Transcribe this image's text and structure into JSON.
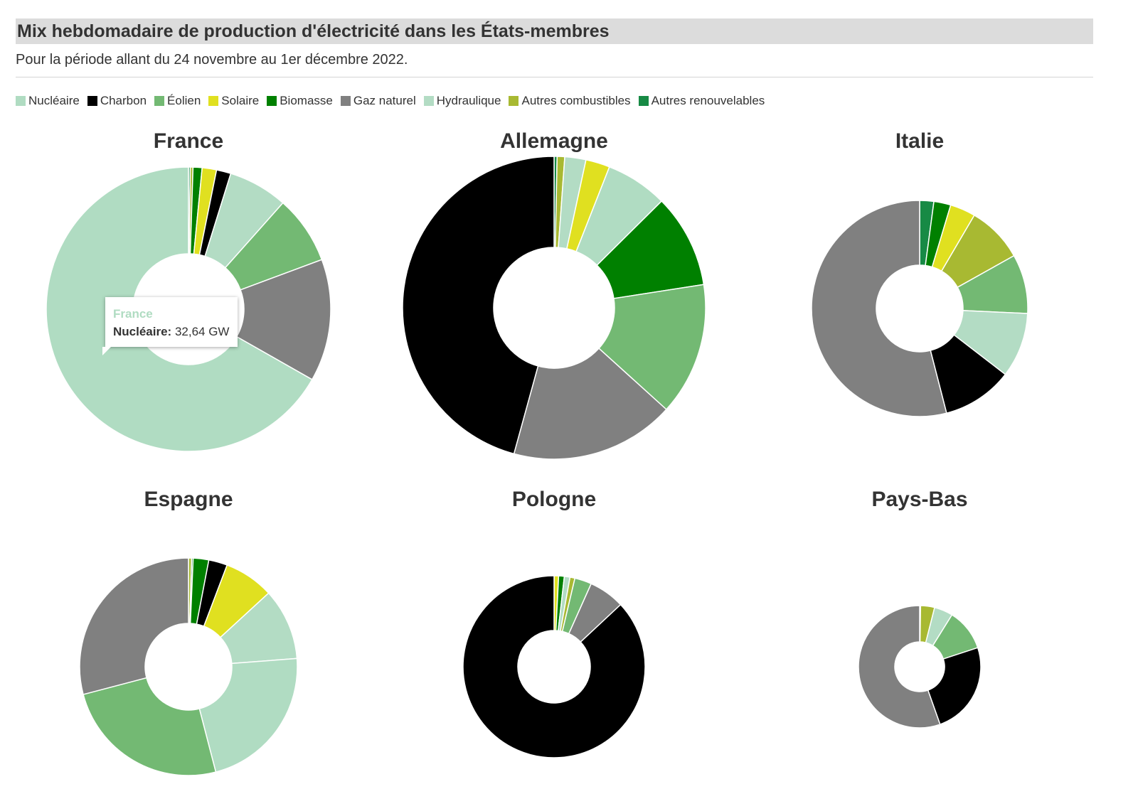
{
  "header": {
    "title": "Mix hebdomadaire de production d'électricité dans les États-membres",
    "subtitle": "Pour la période allant du 24 novembre au 1er décembre 2022."
  },
  "legend": [
    {
      "label": "Nucléaire",
      "color": "#b0dcc2"
    },
    {
      "label": "Charbon",
      "color": "#000000"
    },
    {
      "label": "Éolien",
      "color": "#73b973"
    },
    {
      "label": "Solaire",
      "color": "#e0e020"
    },
    {
      "label": "Biomasse",
      "color": "#008000"
    },
    {
      "label": "Gaz naturel",
      "color": "#808080"
    },
    {
      "label": "Hydraulique",
      "color": "#b3dcc4"
    },
    {
      "label": "Autres combustibles",
      "color": "#a8b932"
    },
    {
      "label": "Autres renouvelables",
      "color": "#178a45"
    }
  ],
  "tooltip": {
    "country": "France",
    "label": "Nucléaire:",
    "value": "32,64 GW"
  },
  "chart_data": [
    {
      "type": "pie",
      "title": "France",
      "unit": "GW",
      "categories": [
        "Autres renouvelables",
        "Autres combustibles",
        "Biomasse",
        "Solaire",
        "Charbon",
        "Hydraulique",
        "Éolien",
        "Gaz naturel",
        "Nucléaire"
      ],
      "values": [
        0.1,
        0.15,
        0.5,
        0.8,
        0.8,
        3.3,
        3.8,
        6.8,
        32.64
      ]
    },
    {
      "type": "pie",
      "title": "Allemagne",
      "unit": "GW",
      "categories": [
        "Autres renouvelables",
        "Autres combustibles",
        "Hydraulique",
        "Solaire",
        "Nucléaire",
        "Biomasse",
        "Éolien",
        "Gaz naturel",
        "Charbon"
      ],
      "values": [
        0.2,
        0.5,
        1.4,
        1.6,
        4.1,
        6.2,
        8.8,
        10.9,
        28.4
      ]
    },
    {
      "type": "pie",
      "title": "Italie",
      "unit": "GW",
      "categories": [
        "Autres renouvelables",
        "Biomasse",
        "Solaire",
        "Autres combustibles",
        "Éolien",
        "Hydraulique",
        "Charbon",
        "Gaz naturel"
      ],
      "values": [
        0.5,
        0.6,
        0.9,
        2.0,
        2.1,
        2.3,
        2.5,
        12.8
      ]
    },
    {
      "type": "pie",
      "title": "Espagne",
      "unit": "GW",
      "categories": [
        "Autres combustibles",
        "Autres renouvelables",
        "Biomasse",
        "Charbon",
        "Solaire",
        "Hydraulique",
        "Nucléaire",
        "Éolien",
        "Gaz naturel"
      ],
      "values": [
        0.1,
        0.05,
        0.5,
        0.6,
        1.6,
        2.3,
        4.8,
        5.4,
        6.3
      ]
    },
    {
      "type": "pie",
      "title": "Pologne",
      "unit": "GW",
      "categories": [
        "Solaire",
        "Biomasse",
        "Hydraulique",
        "Autres combustibles",
        "Éolien",
        "Gaz naturel",
        "Charbon"
      ],
      "values": [
        0.12,
        0.15,
        0.15,
        0.13,
        0.45,
        0.95,
        13.0
      ]
    },
    {
      "type": "pie",
      "title": "Pays-Bas",
      "unit": "GW",
      "categories": [
        "Biomasse",
        "Autres combustibles",
        "Hydraulique",
        "Éolien",
        "Charbon",
        "Gaz naturel"
      ],
      "values": [
        0.02,
        0.3,
        0.4,
        0.9,
        2.0,
        4.5
      ]
    }
  ]
}
